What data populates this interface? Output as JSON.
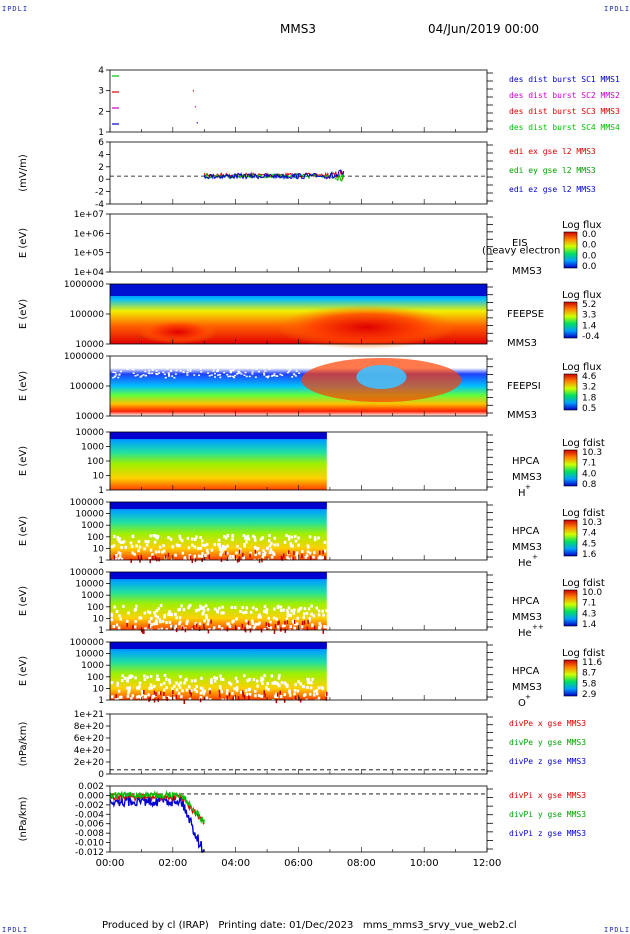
{
  "corner_label": "IPDLI",
  "title": "MMS3",
  "datetime": "04/Jun/2019 00:00",
  "footer": "Produced by cl (IRAP)   Printing date: 01/Dec/2023   mms_mms3_srvy_vue_web2.cl",
  "colors": {
    "red": "#e00000",
    "green": "#00c000",
    "blue": "#0000d0",
    "magenta": "#d000d0",
    "darkgreen": "#00a000"
  },
  "chart_data": [
    {
      "type": "scatter",
      "id": "p1",
      "yticks": [
        "4",
        "3",
        "2",
        "1"
      ],
      "legend": [
        {
          "text": "des dist burst SC1 MMS1",
          "color": "#0000d0"
        },
        {
          "text": "des dist burst SC2 MMS2",
          "color": "#d000d0"
        },
        {
          "text": "des dist burst SC3 MMS3",
          "color": "#e00000"
        },
        {
          "text": "des dist burst SC4 MMS4",
          "color": "#00c000"
        }
      ]
    },
    {
      "type": "line",
      "id": "p2",
      "ylabel": "(mV/m)",
      "yticks": [
        "6",
        "4",
        "2",
        "0",
        "-2",
        "-4"
      ],
      "legend": [
        {
          "text": "edi ex gse l2 MMS3",
          "color": "#e00000"
        },
        {
          "text": "edi ey gse l2 MMS3",
          "color": "#00a000"
        },
        {
          "text": "edi ez gse l2 MMS3",
          "color": "#0000d0"
        }
      ]
    },
    {
      "type": "heatmap",
      "id": "p3",
      "ylabel": "E (eV)",
      "yticks": [
        "1e+07",
        "1e+06",
        "1e+05",
        "1e+04"
      ],
      "instrument": "EIS",
      "sc": "MMS3",
      "overlay": "(heavy electron to",
      "cbar_title": "Log flux",
      "cbar_ticks": [
        "0.0",
        "0.0",
        "0.0",
        "0.0"
      ]
    },
    {
      "type": "heatmap",
      "id": "p4",
      "ylabel": "E (eV)",
      "yticks": [
        "1000000",
        "100000",
        "10000"
      ],
      "instrument": "FEEPSE",
      "sc": "MMS3",
      "cbar_title": "Log flux",
      "cbar_ticks": [
        "5.2",
        "3.3",
        "1.4",
        "-0.4"
      ]
    },
    {
      "type": "heatmap",
      "id": "p5",
      "ylabel": "E (eV)",
      "yticks": [
        "1000000",
        "100000",
        "10000"
      ],
      "instrument": "FEEPSI",
      "sc": "MMS3",
      "cbar_title": "Log flux",
      "cbar_ticks": [
        "4.6",
        "3.2",
        "1.8",
        "0.5"
      ]
    },
    {
      "type": "heatmap",
      "id": "p6",
      "ylabel": "E (eV)",
      "yticks": [
        "10000",
        "1000",
        "100",
        "10",
        "1"
      ],
      "instrument": "HPCA",
      "sc": "MMS3",
      "species": "H",
      "sup": "+",
      "cbar_title": "Log fdist",
      "cbar_ticks": [
        "10.3",
        "7.1",
        "4.0",
        "0.8"
      ]
    },
    {
      "type": "heatmap",
      "id": "p7",
      "ylabel": "E (eV)",
      "yticks": [
        "100000",
        "10000",
        "1000",
        "100",
        "10",
        "1"
      ],
      "instrument": "HPCA",
      "sc": "MMS3",
      "species": "He",
      "sup": "+",
      "cbar_title": "Log fdist",
      "cbar_ticks": [
        "10.3",
        "7.4",
        "4.5",
        "1.6"
      ]
    },
    {
      "type": "heatmap",
      "id": "p8",
      "ylabel": "E (eV)",
      "yticks": [
        "100000",
        "10000",
        "1000",
        "100",
        "10",
        "1"
      ],
      "instrument": "HPCA",
      "sc": "MMS3",
      "species": "He",
      "sup": "++",
      "cbar_title": "Log fdist",
      "cbar_ticks": [
        "10.0",
        "7.1",
        "4.3",
        "1.4"
      ]
    },
    {
      "type": "heatmap",
      "id": "p9",
      "ylabel": "E (eV)",
      "yticks": [
        "100000",
        "10000",
        "1000",
        "100",
        "10",
        "1"
      ],
      "instrument": "HPCA",
      "sc": "MMS3",
      "species": "O",
      "sup": "+",
      "cbar_title": "Log fdist",
      "cbar_ticks": [
        "11.6",
        "8.7",
        "5.8",
        "2.9"
      ]
    },
    {
      "type": "line",
      "id": "p10",
      "ylabel": "(nPa/km)",
      "yticks": [
        "1e+21",
        "8e+20",
        "6e+20",
        "4e+20",
        "2e+20",
        "0"
      ],
      "legend": [
        {
          "text": "divPe x gse MMS3",
          "color": "#e00000"
        },
        {
          "text": "divPe y gse MMS3",
          "color": "#00a000"
        },
        {
          "text": "divPe z gse MMS3",
          "color": "#0000d0"
        }
      ]
    },
    {
      "type": "line",
      "id": "p11",
      "ylabel": "(nPa/km)",
      "yticks": [
        "0.002",
        "0.000",
        "-0.002",
        "-0.004",
        "-0.006",
        "-0.008",
        "-0.010",
        "-0.012"
      ],
      "legend": [
        {
          "text": "divPi x gse MMS3",
          "color": "#e00000"
        },
        {
          "text": "divPi y gse MMS3",
          "color": "#00a000"
        },
        {
          "text": "divPi z gse MMS3",
          "color": "#0000d0"
        }
      ]
    }
  ],
  "xticks": [
    "00:00",
    "02:00",
    "04:00",
    "06:00",
    "08:00",
    "10:00",
    "12:00"
  ]
}
